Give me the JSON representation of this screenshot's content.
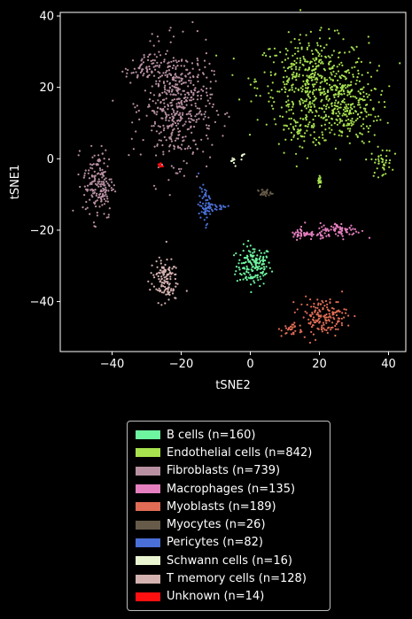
{
  "chart_data": {
    "type": "scatter",
    "title": "",
    "xlabel": "tSNE2",
    "ylabel": "tSNE1",
    "xlim": [
      -55,
      45
    ],
    "ylim": [
      -54,
      41
    ],
    "xticks": [
      -40,
      -20,
      0,
      20,
      40
    ],
    "yticks": [
      -40,
      -20,
      0,
      20,
      40
    ],
    "grid": false,
    "legend_position": "below",
    "series": [
      {
        "name": "B cells (n=160)",
        "color": "#6ef5a0",
        "n": 160,
        "clusters": [
          {
            "cx": 1,
            "cy": -30,
            "sx": 2.5,
            "sy": 2.8,
            "frac": 1.0
          }
        ]
      },
      {
        "name": "Endothelial cells (n=842)",
        "color": "#a8e24e",
        "n": 842,
        "clusters": [
          {
            "cx": 18,
            "cy": 22,
            "sx": 8,
            "sy": 6,
            "frac": 0.55
          },
          {
            "cx": 27,
            "cy": 14,
            "sx": 5,
            "sy": 5,
            "frac": 0.3
          },
          {
            "cx": 15,
            "cy": 8,
            "sx": 3,
            "sy": 3,
            "frac": 0.08
          },
          {
            "cx": 38,
            "cy": -1,
            "sx": 1.5,
            "sy": 2,
            "frac": 0.05
          },
          {
            "cx": 20,
            "cy": -6,
            "sx": 0.5,
            "sy": 0.8,
            "frac": 0.02
          }
        ]
      },
      {
        "name": "Fibroblasts (n=739)",
        "color": "#b890a2",
        "n": 739,
        "clusters": [
          {
            "cx": -21,
            "cy": 15,
            "sx": 5,
            "sy": 8,
            "frac": 0.68
          },
          {
            "cx": -31,
            "cy": 25,
            "sx": 2.5,
            "sy": 2,
            "frac": 0.08
          },
          {
            "cx": -44,
            "cy": -7,
            "sx": 2.2,
            "sy": 5,
            "frac": 0.24
          }
        ]
      },
      {
        "name": "Macrophages (n=135)",
        "color": "#e57fbf",
        "n": 135,
        "clusters": [
          {
            "cx": 26,
            "cy": -20,
            "sx": 3,
            "sy": 1,
            "frac": 0.6
          },
          {
            "cx": 16,
            "cy": -21,
            "sx": 2.5,
            "sy": 0.8,
            "frac": 0.4
          }
        ]
      },
      {
        "name": "Myoblasts (n=189)",
        "color": "#e06c55",
        "n": 189,
        "clusters": [
          {
            "cx": 21,
            "cy": -44,
            "sx": 3.5,
            "sy": 2.5,
            "frac": 0.85
          },
          {
            "cx": 12,
            "cy": -48,
            "sx": 1.5,
            "sy": 1,
            "frac": 0.15
          }
        ]
      },
      {
        "name": "Myocytes (n=26)",
        "color": "#665a49",
        "n": 26,
        "clusters": [
          {
            "cx": 4,
            "cy": -9.5,
            "sx": 1,
            "sy": 0.5,
            "frac": 1.0
          }
        ]
      },
      {
        "name": "Pericytes (n=82)",
        "color": "#4a6fd6",
        "n": 82,
        "clusters": [
          {
            "cx": -13,
            "cy": -13,
            "sx": 1,
            "sy": 2.5,
            "frac": 0.8
          },
          {
            "cx": -9,
            "cy": -13.5,
            "sx": 1.5,
            "sy": 0.6,
            "frac": 0.2
          }
        ]
      },
      {
        "name": "Schwann cells (n=16)",
        "color": "#e8f5d0",
        "n": 16,
        "clusters": [
          {
            "cx": -5,
            "cy": -0.5,
            "sx": 0.3,
            "sy": 0.6,
            "frac": 0.6
          },
          {
            "cx": -2.5,
            "cy": 1,
            "sx": 0.3,
            "sy": 0.4,
            "frac": 0.4
          }
        ]
      },
      {
        "name": "T memory cells (n=128)",
        "color": "#d4b2b0",
        "n": 128,
        "clusters": [
          {
            "cx": -25,
            "cy": -34,
            "sx": 2,
            "sy": 3,
            "frac": 1.0
          }
        ]
      },
      {
        "name": "Unknown (n=14)",
        "color": "#ff1010",
        "n": 14,
        "clusters": [
          {
            "cx": -26,
            "cy": -1.7,
            "sx": 0.3,
            "sy": 0.5,
            "frac": 1.0
          }
        ]
      }
    ]
  }
}
